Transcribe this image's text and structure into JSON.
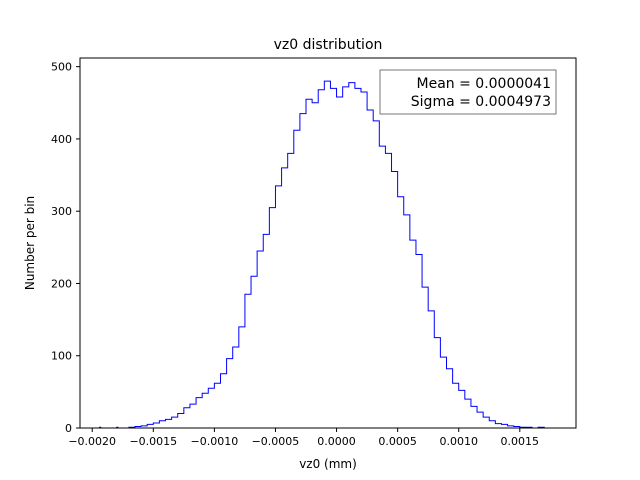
{
  "chart_data": {
    "type": "line",
    "style": "step histogram",
    "title": "vz0 distribution",
    "xlabel": "vz0 (mm)",
    "ylabel": "Number per bin",
    "xlim": [
      -0.0021,
      0.00196
    ],
    "ylim": [
      0,
      512
    ],
    "xticks": [
      {
        "value": -0.002,
        "label": "−0.0020"
      },
      {
        "value": -0.0015,
        "label": "−0.0015"
      },
      {
        "value": -0.001,
        "label": "−0.0010"
      },
      {
        "value": -0.0005,
        "label": "−0.0005"
      },
      {
        "value": 0.0,
        "label": "0.0000"
      },
      {
        "value": 0.0005,
        "label": "0.0005"
      },
      {
        "value": 0.001,
        "label": "0.0010"
      },
      {
        "value": 0.0015,
        "label": "0.0015"
      }
    ],
    "yticks": [
      {
        "value": 0,
        "label": "0"
      },
      {
        "value": 100,
        "label": "100"
      },
      {
        "value": 200,
        "label": "200"
      },
      {
        "value": 300,
        "label": "300"
      },
      {
        "value": 400,
        "label": "400"
      },
      {
        "value": 500,
        "label": "500"
      }
    ],
    "grid": false,
    "stat_box_placement": "top-right",
    "stats": {
      "mean_label": "Mean = 0.0000041",
      "sigma_label": "Sigma = 0.0004973"
    },
    "series": [
      {
        "color": "#0000ff",
        "points": [
          [
            -0.00195,
            0
          ],
          [
            -0.00194,
            1
          ],
          [
            -0.00193,
            0
          ],
          [
            -0.0018,
            1
          ],
          [
            -0.00179,
            0
          ],
          [
            -0.00175,
            0
          ],
          [
            -0.0017,
            1
          ],
          [
            -0.00165,
            2
          ],
          [
            -0.0016,
            3
          ],
          [
            -0.00155,
            5
          ],
          [
            -0.0015,
            7
          ],
          [
            -0.00145,
            10
          ],
          [
            -0.0014,
            12
          ],
          [
            -0.00135,
            15
          ],
          [
            -0.0013,
            20
          ],
          [
            -0.00125,
            28
          ],
          [
            -0.0012,
            33
          ],
          [
            -0.00115,
            42
          ],
          [
            -0.0011,
            48
          ],
          [
            -0.00105,
            55
          ],
          [
            -0.001,
            62
          ],
          [
            -0.00095,
            75
          ],
          [
            -0.0009,
            96
          ],
          [
            -0.00085,
            112
          ],
          [
            -0.0008,
            140
          ],
          [
            -0.00075,
            185
          ],
          [
            -0.0007,
            210
          ],
          [
            -0.00065,
            245
          ],
          [
            -0.0006,
            268
          ],
          [
            -0.00055,
            305
          ],
          [
            -0.0005,
            335
          ],
          [
            -0.00045,
            360
          ],
          [
            -0.0004,
            380
          ],
          [
            -0.00035,
            412
          ],
          [
            -0.0003,
            435
          ],
          [
            -0.00025,
            455
          ],
          [
            -0.0002,
            450
          ],
          [
            -0.00015,
            468
          ],
          [
            -0.0001,
            480
          ],
          [
            -5e-05,
            470
          ],
          [
            0.0,
            458
          ],
          [
            5e-05,
            472
          ],
          [
            0.0001,
            478
          ],
          [
            0.00015,
            470
          ],
          [
            0.0002,
            465
          ],
          [
            0.00025,
            440
          ],
          [
            0.0003,
            425
          ],
          [
            0.00035,
            390
          ],
          [
            0.0004,
            380
          ],
          [
            0.00045,
            355
          ],
          [
            0.0005,
            320
          ],
          [
            0.00055,
            295
          ],
          [
            0.0006,
            260
          ],
          [
            0.00065,
            240
          ],
          [
            0.0007,
            195
          ],
          [
            0.00075,
            162
          ],
          [
            0.0008,
            125
          ],
          [
            0.00085,
            98
          ],
          [
            0.0009,
            82
          ],
          [
            0.00095,
            62
          ],
          [
            0.001,
            52
          ],
          [
            0.00105,
            40
          ],
          [
            0.0011,
            30
          ],
          [
            0.00115,
            22
          ],
          [
            0.0012,
            15
          ],
          [
            0.00125,
            10
          ],
          [
            0.0013,
            6
          ],
          [
            0.00135,
            5
          ],
          [
            0.0014,
            3
          ],
          [
            0.00145,
            2
          ],
          [
            0.0015,
            1
          ],
          [
            0.00155,
            1
          ],
          [
            0.0016,
            0
          ],
          [
            0.00165,
            1
          ],
          [
            0.0017,
            0
          ],
          [
            0.00178,
            0
          ]
        ]
      }
    ]
  }
}
